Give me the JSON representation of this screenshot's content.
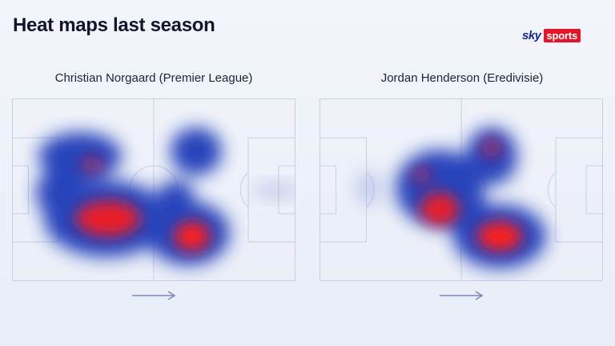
{
  "header": {
    "title": "Heat maps last season",
    "brand": {
      "sky": "sky",
      "sports": "sports",
      "accent": "#e3152a",
      "navy": "#1a2a8c"
    }
  },
  "heatmaps": [
    {
      "label": "Christian Norgaard (Premier League)",
      "arrow_icon": "right-arrow-icon"
    },
    {
      "label": "Jordan Henderson (Eredivisie)",
      "arrow_icon": "right-arrow-icon"
    }
  ],
  "colors": {
    "hot": "#ff1a1a",
    "mid": "#1e3bb8",
    "line": "#c9cfe2"
  }
}
